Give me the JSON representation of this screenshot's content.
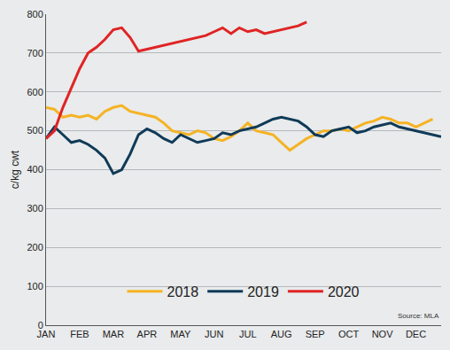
{
  "chart_data": {
    "type": "line",
    "y_label": "c/kg cwt",
    "annotations": [
      "Source: MLA"
    ],
    "categories": [
      "JAN",
      null,
      null,
      null,
      "FEB",
      null,
      null,
      null,
      "MAR",
      null,
      null,
      null,
      "APR",
      null,
      null,
      null,
      "MAY",
      null,
      null,
      null,
      "JUN",
      null,
      null,
      null,
      "JUL",
      null,
      null,
      null,
      "AUG",
      null,
      null,
      null,
      "SEP",
      null,
      null,
      null,
      "OCT",
      null,
      null,
      null,
      "NOV",
      null,
      null,
      null,
      "DEC",
      null,
      null,
      null
    ],
    "series": [
      {
        "name": "2018",
        "color": "#f5b324",
        "values": [
          560,
          555,
          535,
          540,
          535,
          540,
          530,
          550,
          560,
          565,
          550,
          545,
          540,
          535,
          520,
          500,
          495,
          490,
          500,
          495,
          480,
          475,
          485,
          500,
          520,
          500,
          495,
          490,
          470,
          450,
          465,
          480,
          490,
          500,
          500,
          505,
          500,
          510,
          520,
          525,
          535,
          530,
          520,
          520,
          510,
          520,
          530,
          null
        ]
      },
      {
        "name": "2019",
        "color": "#0f3a57",
        "values": [
          480,
          510,
          490,
          470,
          475,
          465,
          450,
          430,
          390,
          400,
          440,
          490,
          505,
          495,
          480,
          470,
          490,
          480,
          470,
          475,
          480,
          495,
          490,
          500,
          505,
          510,
          520,
          530,
          535,
          530,
          525,
          510,
          490,
          485,
          500,
          505,
          510,
          495,
          500,
          510,
          515,
          520,
          510,
          505,
          500,
          495,
          490,
          485
        ]
      },
      {
        "name": "2020",
        "color": "#e02424",
        "values": [
          480,
          500,
          560,
          610,
          660,
          700,
          715,
          735,
          760,
          765,
          740,
          705,
          710,
          715,
          720,
          725,
          730,
          735,
          740,
          745,
          755,
          765,
          750,
          765,
          755,
          760,
          750,
          755,
          760,
          765,
          770,
          780,
          null,
          null,
          null,
          null,
          null,
          null,
          null,
          null,
          null,
          null,
          null,
          null,
          null,
          null,
          null,
          null
        ]
      }
    ],
    "ylim": [
      0,
      800
    ],
    "yticks": [
      0,
      100,
      200,
      300,
      400,
      500,
      600,
      700,
      800
    ],
    "grid": true,
    "legend": "bottom"
  }
}
